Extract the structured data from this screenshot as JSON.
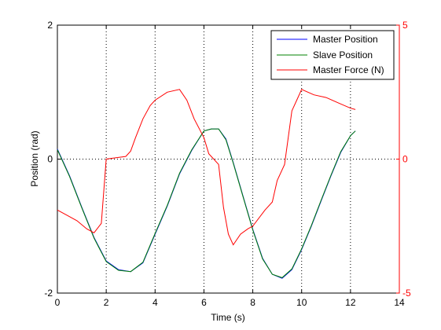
{
  "chart_data": {
    "type": "line",
    "xlabel": "Time (s)",
    "ylabel": "Position (rad)",
    "xlim": [
      0,
      14
    ],
    "ylim": [
      -2,
      2
    ],
    "y2lim": [
      -5,
      5
    ],
    "x_ticks": [
      "0",
      "2",
      "4",
      "6",
      "8",
      "10",
      "12",
      "14"
    ],
    "y_ticks": [
      "-2",
      "0",
      "2"
    ],
    "y2_ticks": [
      "-5",
      "0",
      "5"
    ],
    "grid": "dotted",
    "legend_position": "top-right",
    "series": [
      {
        "name": "Master Position",
        "axis": "left",
        "color": "#0000ff",
        "x": [
          0,
          0.5,
          1.0,
          1.5,
          2.0,
          2.5,
          3.0,
          3.5,
          4.0,
          4.5,
          5.0,
          5.5,
          6.0,
          6.3,
          6.6,
          6.9,
          7.2,
          7.6,
          8.0,
          8.4,
          8.8,
          9.2,
          9.6,
          10.0,
          10.4,
          10.8,
          11.2,
          11.6,
          12.0,
          12.2
        ],
        "y": [
          0.15,
          -0.25,
          -0.72,
          -1.17,
          -1.52,
          -1.65,
          -1.68,
          -1.55,
          -1.12,
          -0.7,
          -0.22,
          0.13,
          0.42,
          0.45,
          0.45,
          0.3,
          -0.05,
          -0.55,
          -1.05,
          -1.48,
          -1.72,
          -1.78,
          -1.65,
          -1.35,
          -1.0,
          -0.62,
          -0.25,
          0.1,
          0.35,
          0.42
        ]
      },
      {
        "name": "Slave Position",
        "axis": "left",
        "color": "#008000",
        "x": [
          0,
          0.5,
          1.0,
          1.5,
          2.0,
          2.5,
          3.0,
          3.5,
          4.0,
          4.5,
          5.0,
          5.5,
          6.0,
          6.3,
          6.6,
          6.9,
          7.2,
          7.6,
          8.0,
          8.4,
          8.8,
          9.2,
          9.6,
          10.0,
          10.4,
          10.8,
          11.2,
          11.6,
          12.0,
          12.2
        ],
        "y": [
          0.14,
          -0.26,
          -0.73,
          -1.18,
          -1.53,
          -1.66,
          -1.68,
          -1.54,
          -1.11,
          -0.69,
          -0.21,
          0.14,
          0.42,
          0.45,
          0.45,
          0.29,
          -0.06,
          -0.56,
          -1.06,
          -1.49,
          -1.72,
          -1.77,
          -1.64,
          -1.34,
          -0.99,
          -0.61,
          -0.24,
          0.11,
          0.35,
          0.42
        ]
      },
      {
        "name": "Master Force (N)",
        "axis": "right",
        "color": "#ff0000",
        "x": [
          0,
          0.4,
          0.8,
          1.2,
          1.5,
          1.8,
          1.9,
          2.0,
          2.4,
          2.8,
          3.0,
          3.2,
          3.5,
          3.8,
          4.0,
          4.5,
          5.0,
          5.3,
          5.6,
          6.0,
          6.2,
          6.4,
          6.6,
          6.8,
          7.0,
          7.2,
          7.5,
          7.8,
          8.0,
          8.5,
          8.8,
          9.0,
          9.3,
          9.6,
          9.8,
          10.0,
          10.5,
          11.0,
          11.5,
          12.0,
          12.2
        ],
        "y": [
          -1.9,
          -2.1,
          -2.3,
          -2.6,
          -2.75,
          -2.4,
          -1.2,
          0.0,
          0.05,
          0.1,
          0.3,
          0.8,
          1.5,
          2.0,
          2.2,
          2.5,
          2.6,
          2.2,
          1.5,
          0.8,
          0.2,
          0.0,
          -0.2,
          -1.8,
          -2.8,
          -3.2,
          -2.8,
          -2.6,
          -2.5,
          -1.9,
          -1.6,
          -0.8,
          -0.2,
          1.8,
          2.2,
          2.6,
          2.4,
          2.3,
          2.1,
          1.9,
          1.85
        ]
      }
    ]
  }
}
